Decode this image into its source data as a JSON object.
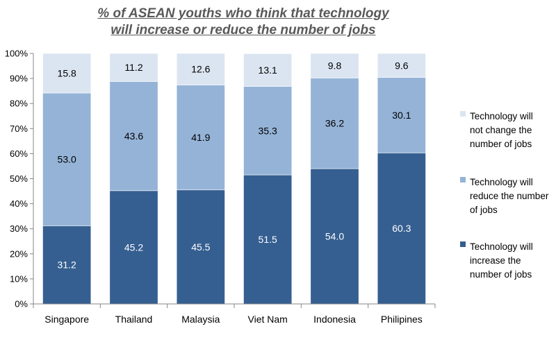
{
  "title_lines": [
    "% of ASEAN youths who think that technology",
    "will increase or reduce the number of jobs"
  ],
  "chart_data": {
    "type": "bar",
    "stacked": true,
    "title": "% of ASEAN youths who think that technology will increase or reduce the number of jobs",
    "categories": [
      "Singapore",
      "Thailand",
      "Malaysia",
      "Viet Nam",
      "Indonesia",
      "Philipines"
    ],
    "series": [
      {
        "name": "Technology will increase the number of jobs",
        "legend_lines": [
          "Technology will",
          "increase the",
          "number of jobs"
        ],
        "values": [
          31.2,
          45.2,
          45.5,
          51.5,
          54.0,
          60.3
        ],
        "labels": [
          "31.2",
          "45.2",
          "45.5",
          "51.5",
          "54.0",
          "60.3"
        ],
        "color": "#355F91",
        "label_color": "#ffffff"
      },
      {
        "name": "Technology will reduce the number of jobs",
        "legend_lines": [
          "Technology will",
          "reduce the number",
          "of jobs"
        ],
        "values": [
          53.0,
          43.6,
          41.9,
          35.3,
          36.2,
          30.1
        ],
        "labels": [
          "53.0",
          "43.6",
          "41.9",
          "35.3",
          "36.2",
          "30.1"
        ],
        "color": "#95B3D7",
        "label_color": "#000000"
      },
      {
        "name": "Technology will not change the number of jobs",
        "legend_lines": [
          "Technology will",
          "not change the",
          "number of jobs"
        ],
        "values": [
          15.8,
          11.2,
          12.6,
          13.1,
          9.8,
          9.6
        ],
        "labels": [
          "15.8",
          "11.2",
          "12.6",
          "13.1",
          "9.8",
          "9.6"
        ],
        "color": "#DBE5F1",
        "label_color": "#000000"
      }
    ],
    "y_ticks": [
      "0%",
      "10%",
      "20%",
      "30%",
      "40%",
      "50%",
      "60%",
      "70%",
      "80%",
      "90%",
      "100%"
    ],
    "ylim": [
      0,
      100
    ],
    "grid": false,
    "legend": "right"
  }
}
